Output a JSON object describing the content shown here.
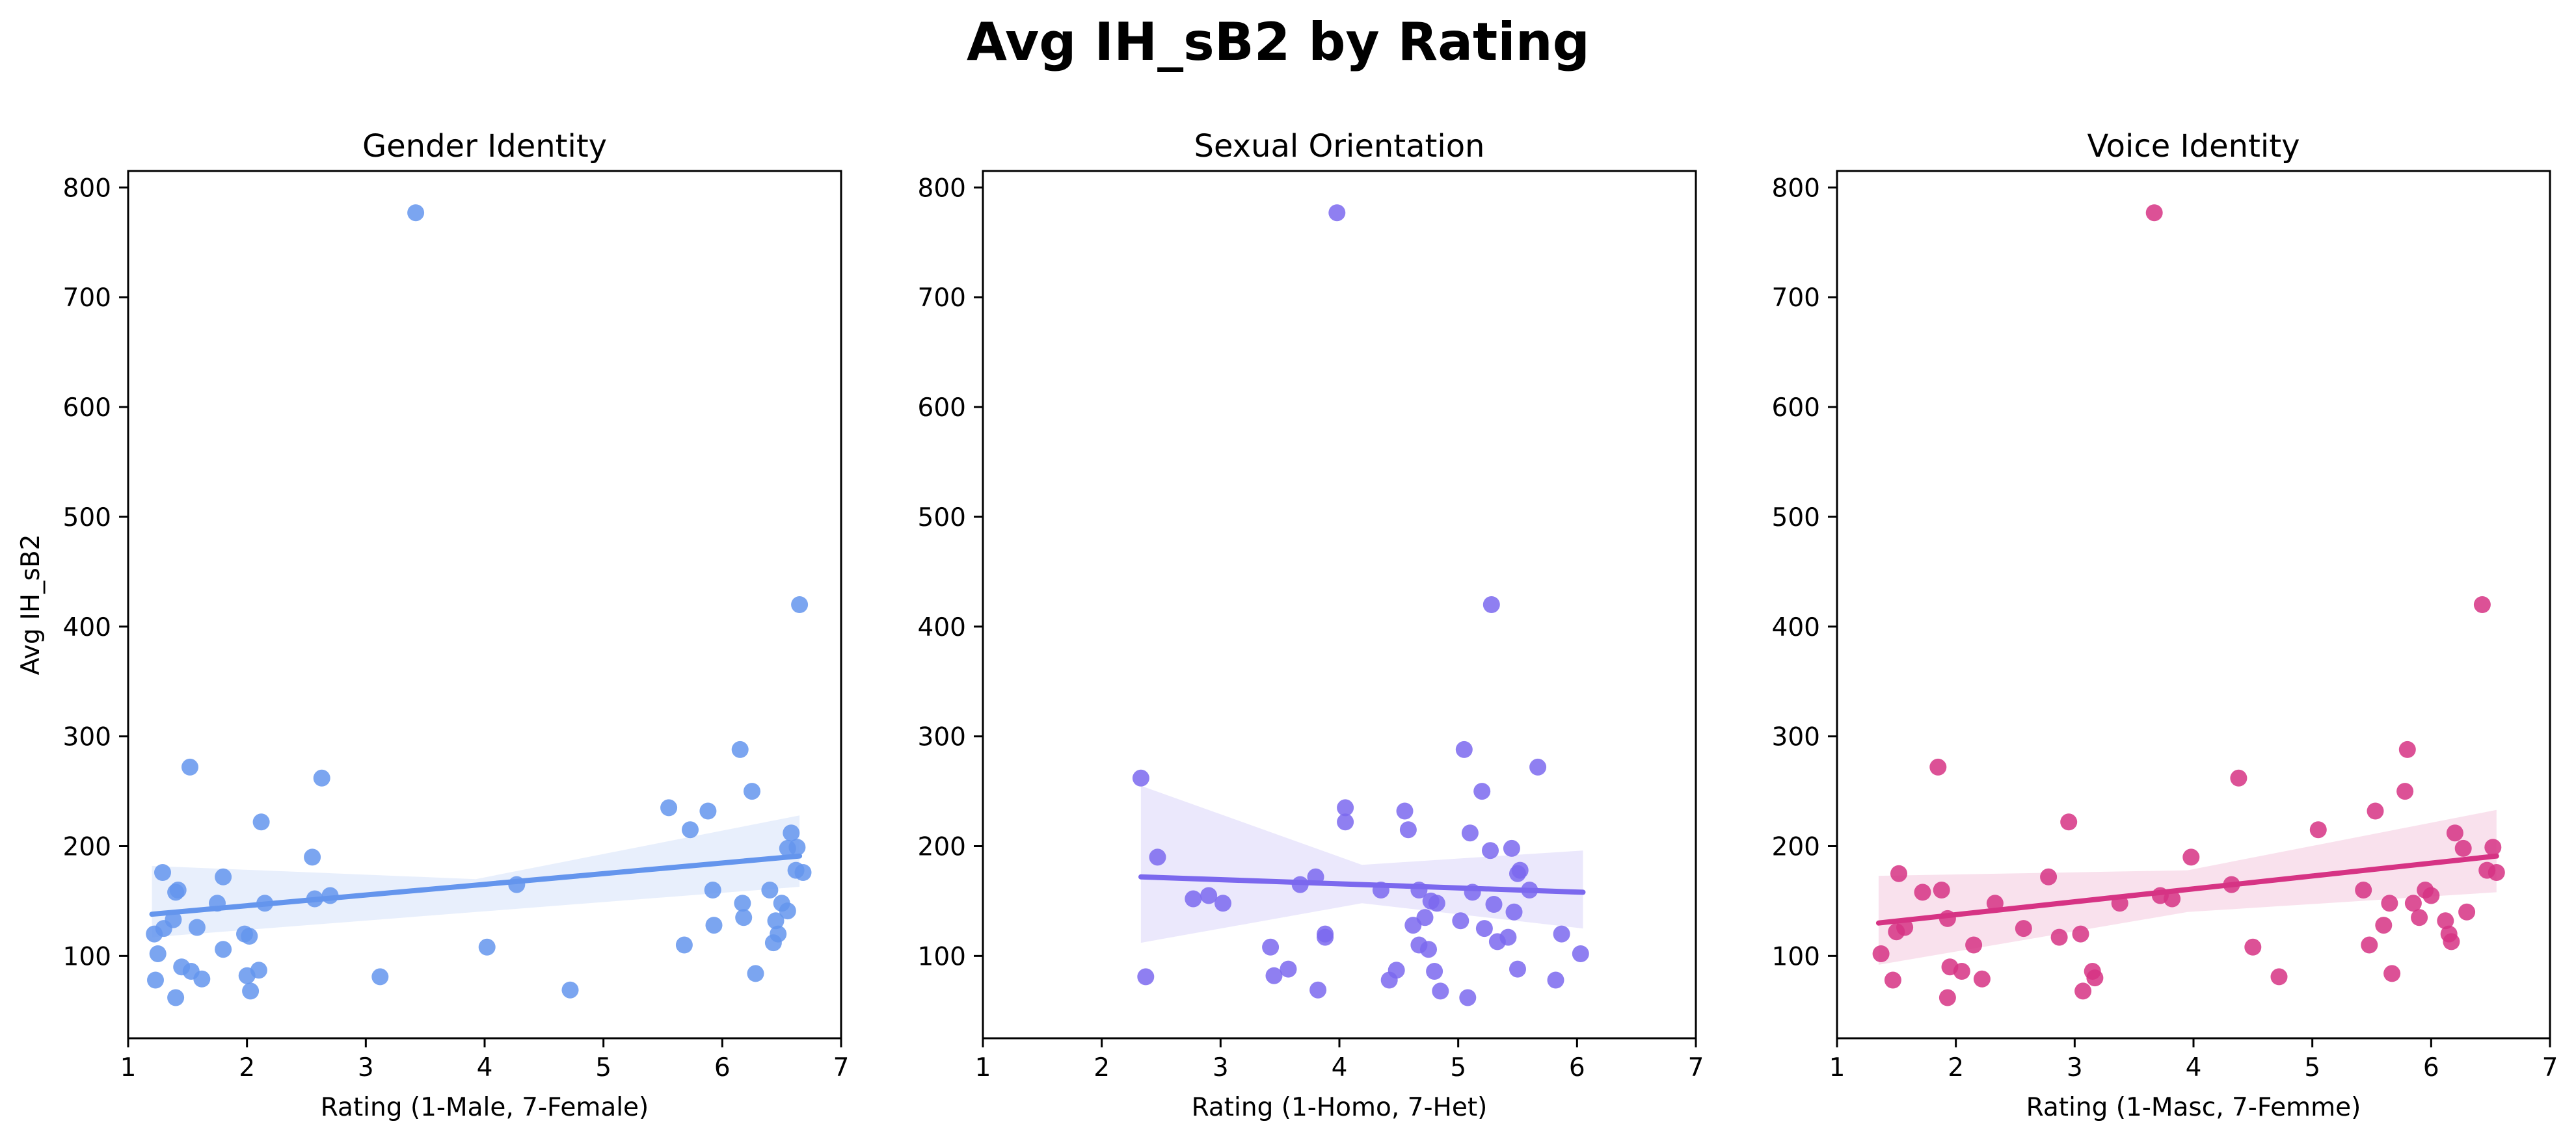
{
  "chart_data": {
    "type": "scatter",
    "title": "Avg IH_sB2 by Rating",
    "ylabel": "Avg IH_sB2",
    "xlim": [
      1,
      7
    ],
    "ylim": [
      25,
      815
    ],
    "xticks": [
      1,
      2,
      3,
      4,
      5,
      6,
      7
    ],
    "yticks": [
      100,
      200,
      300,
      400,
      500,
      600,
      700,
      800
    ],
    "panels": [
      {
        "title": "Gender Identity",
        "xlabel": "Rating (1-Male, 7-Female)",
        "color": "#6495ED",
        "fit": {
          "x0": 1.2,
          "y0": 138,
          "x1": 6.65,
          "y1": 191,
          "ci_low_x0": 117,
          "ci_high_x0": 182,
          "ci_low_mid": 140,
          "ci_high_mid": 170,
          "ci_low_x1": 163,
          "ci_high_x1": 228
        },
        "points": [
          [
            1.22,
            120
          ],
          [
            1.25,
            102
          ],
          [
            1.23,
            78
          ],
          [
            1.3,
            125
          ],
          [
            1.29,
            176
          ],
          [
            1.38,
            133
          ],
          [
            1.42,
            160
          ],
          [
            1.4,
            158
          ],
          [
            1.45,
            90
          ],
          [
            1.4,
            62
          ],
          [
            1.52,
            272
          ],
          [
            1.53,
            86
          ],
          [
            1.58,
            126
          ],
          [
            1.62,
            79
          ],
          [
            1.75,
            148
          ],
          [
            1.8,
            172
          ],
          [
            1.8,
            106
          ],
          [
            1.98,
            120
          ],
          [
            2.02,
            118
          ],
          [
            2.0,
            82
          ],
          [
            2.03,
            68
          ],
          [
            2.1,
            87
          ],
          [
            2.12,
            222
          ],
          [
            2.15,
            148
          ],
          [
            2.55,
            190
          ],
          [
            2.57,
            152
          ],
          [
            2.63,
            262
          ],
          [
            2.7,
            155
          ],
          [
            3.12,
            81
          ],
          [
            3.42,
            777
          ],
          [
            4.02,
            108
          ],
          [
            4.27,
            165
          ],
          [
            4.72,
            69
          ],
          [
            5.55,
            235
          ],
          [
            5.68,
            110
          ],
          [
            5.73,
            215
          ],
          [
            5.88,
            232
          ],
          [
            5.92,
            160
          ],
          [
            5.93,
            128
          ],
          [
            6.15,
            288
          ],
          [
            6.17,
            148
          ],
          [
            6.18,
            135
          ],
          [
            6.25,
            250
          ],
          [
            6.28,
            84
          ],
          [
            6.4,
            160
          ],
          [
            6.43,
            112
          ],
          [
            6.45,
            132
          ],
          [
            6.5,
            148
          ],
          [
            6.47,
            120
          ],
          [
            6.55,
            141
          ],
          [
            6.55,
            198
          ],
          [
            6.58,
            212
          ],
          [
            6.62,
            178
          ],
          [
            6.63,
            199
          ],
          [
            6.65,
            420
          ],
          [
            6.68,
            176
          ]
        ]
      },
      {
        "title": "Sexual Orientation",
        "xlabel": "Rating (1-Homo, 7-Het)",
        "color": "#7B68EE",
        "fit": {
          "x0": 2.33,
          "y0": 172,
          "x1": 6.05,
          "y1": 158,
          "ci_low_x0": 112,
          "ci_high_x0": 255,
          "ci_low_mid": 148,
          "ci_high_mid": 183,
          "ci_low_x1": 125,
          "ci_high_x1": 196
        },
        "points": [
          [
            2.33,
            262
          ],
          [
            2.37,
            81
          ],
          [
            2.47,
            190
          ],
          [
            2.77,
            152
          ],
          [
            2.9,
            155
          ],
          [
            3.02,
            148
          ],
          [
            3.42,
            108
          ],
          [
            3.45,
            82
          ],
          [
            3.57,
            88
          ],
          [
            3.67,
            165
          ],
          [
            3.8,
            172
          ],
          [
            3.82,
            69
          ],
          [
            3.88,
            120
          ],
          [
            3.88,
            117
          ],
          [
            3.98,
            777
          ],
          [
            4.05,
            222
          ],
          [
            4.05,
            235
          ],
          [
            4.35,
            160
          ],
          [
            4.42,
            78
          ],
          [
            4.48,
            87
          ],
          [
            4.55,
            232
          ],
          [
            4.58,
            215
          ],
          [
            4.62,
            128
          ],
          [
            4.67,
            160
          ],
          [
            4.67,
            110
          ],
          [
            4.72,
            135
          ],
          [
            4.75,
            106
          ],
          [
            4.77,
            150
          ],
          [
            4.8,
            86
          ],
          [
            4.82,
            148
          ],
          [
            4.85,
            68
          ],
          [
            5.02,
            132
          ],
          [
            5.05,
            288
          ],
          [
            5.08,
            62
          ],
          [
            5.1,
            212
          ],
          [
            5.12,
            158
          ],
          [
            5.2,
            250
          ],
          [
            5.22,
            125
          ],
          [
            5.27,
            196
          ],
          [
            5.28,
            420
          ],
          [
            5.3,
            147
          ],
          [
            5.33,
            113
          ],
          [
            5.42,
            117
          ],
          [
            5.45,
            198
          ],
          [
            5.47,
            140
          ],
          [
            5.5,
            175
          ],
          [
            5.5,
            88
          ],
          [
            5.52,
            178
          ],
          [
            5.6,
            160
          ],
          [
            5.67,
            272
          ],
          [
            5.82,
            78
          ],
          [
            5.87,
            120
          ],
          [
            6.03,
            102
          ]
        ]
      },
      {
        "title": "Voice Identity",
        "xlabel": "Rating (1-Masc, 7-Femme)",
        "color": "#D63384",
        "fit": {
          "x0": 1.35,
          "y0": 130,
          "x1": 6.55,
          "y1": 191,
          "ci_low_x0": 92,
          "ci_high_x0": 173,
          "ci_low_mid": 140,
          "ci_high_mid": 178,
          "ci_low_x1": 158,
          "ci_high_x1": 233
        },
        "points": [
          [
            1.37,
            102
          ],
          [
            1.47,
            78
          ],
          [
            1.5,
            122
          ],
          [
            1.52,
            175
          ],
          [
            1.57,
            126
          ],
          [
            1.72,
            158
          ],
          [
            1.85,
            272
          ],
          [
            1.88,
            160
          ],
          [
            1.93,
            134
          ],
          [
            1.93,
            62
          ],
          [
            1.95,
            90
          ],
          [
            2.05,
            86
          ],
          [
            2.15,
            110
          ],
          [
            2.22,
            79
          ],
          [
            2.33,
            148
          ],
          [
            2.57,
            125
          ],
          [
            2.78,
            172
          ],
          [
            2.87,
            117
          ],
          [
            2.95,
            222
          ],
          [
            3.05,
            120
          ],
          [
            3.07,
            68
          ],
          [
            3.15,
            86
          ],
          [
            3.17,
            80
          ],
          [
            3.38,
            148
          ],
          [
            3.67,
            777
          ],
          [
            3.72,
            155
          ],
          [
            3.82,
            152
          ],
          [
            3.98,
            190
          ],
          [
            4.32,
            165
          ],
          [
            4.38,
            262
          ],
          [
            4.5,
            108
          ],
          [
            4.72,
            81
          ],
          [
            5.05,
            215
          ],
          [
            5.43,
            160
          ],
          [
            5.48,
            110
          ],
          [
            5.53,
            232
          ],
          [
            5.6,
            128
          ],
          [
            5.65,
            148
          ],
          [
            5.67,
            84
          ],
          [
            5.78,
            250
          ],
          [
            5.8,
            288
          ],
          [
            5.85,
            148
          ],
          [
            5.9,
            135
          ],
          [
            5.95,
            160
          ],
          [
            6.0,
            155
          ],
          [
            6.12,
            132
          ],
          [
            6.15,
            120
          ],
          [
            6.17,
            113
          ],
          [
            6.2,
            212
          ],
          [
            6.27,
            198
          ],
          [
            6.3,
            140
          ],
          [
            6.43,
            420
          ],
          [
            6.47,
            178
          ],
          [
            6.52,
            199
          ],
          [
            6.55,
            176
          ]
        ]
      }
    ]
  }
}
